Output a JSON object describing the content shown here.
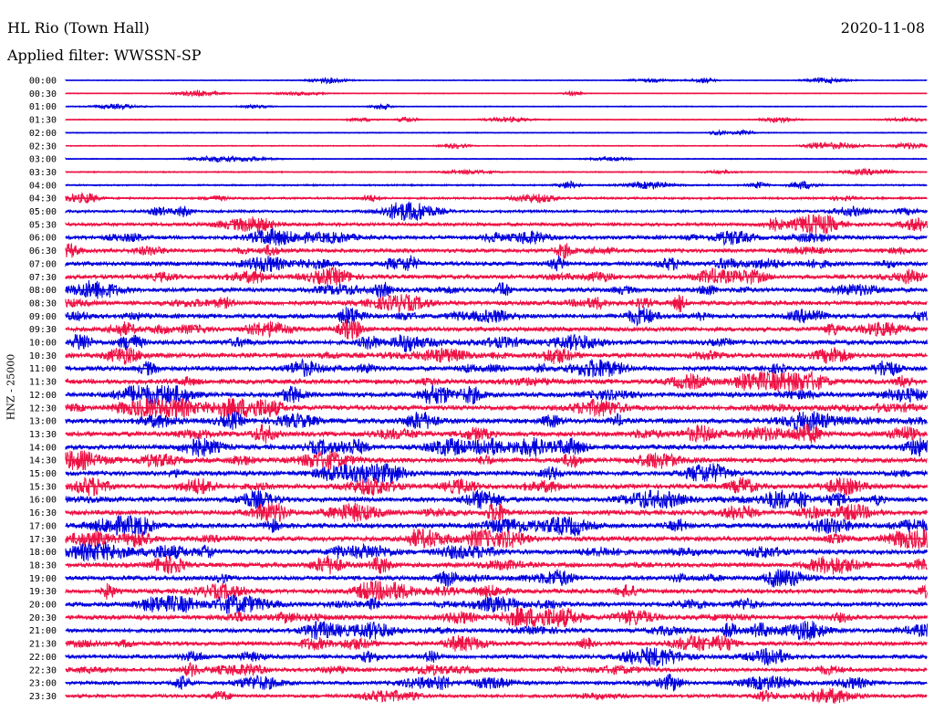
{
  "header": {
    "title": "HL Rio (Town Hall)",
    "date": "2020-11-08",
    "filter": "Applied filter: WWSSN-SP"
  },
  "chart_data": {
    "type": "line",
    "title": "HL Rio (Town Hall)",
    "subtitle": "Applied filter: WWSSN-SP",
    "ylabel": "HNZ - 25000",
    "xlabel": "",
    "colors": [
      "#0000dd",
      "#ee1144"
    ],
    "rows": [
      "00:00",
      "00:30",
      "01:00",
      "01:30",
      "02:00",
      "02:30",
      "03:00",
      "03:30",
      "04:00",
      "04:30",
      "05:00",
      "05:30",
      "06:00",
      "06:30",
      "07:00",
      "07:30",
      "08:00",
      "08:30",
      "09:00",
      "09:30",
      "10:00",
      "10:30",
      "11:00",
      "11:30",
      "12:00",
      "12:30",
      "13:00",
      "13:30",
      "14:00",
      "14:30",
      "15:00",
      "15:30",
      "16:00",
      "16:30",
      "17:00",
      "17:30",
      "18:00",
      "18:30",
      "19:00",
      "19:30",
      "20:00",
      "20:30",
      "21:00",
      "21:30",
      "22:00",
      "22:30",
      "23:00",
      "23:30"
    ],
    "noise_level": [
      0.8,
      0.8,
      0.9,
      0.9,
      0.9,
      1.0,
      1.0,
      1.2,
      1.5,
      2.0,
      2.4,
      3.2,
      3.5,
      3.5,
      3.8,
      3.8,
      4.0,
      4.0,
      4.0,
      4.0,
      4.2,
      4.2,
      4.2,
      4.4,
      4.4,
      4.4,
      4.4,
      4.4,
      4.4,
      4.4,
      4.2,
      4.2,
      4.4,
      4.4,
      4.4,
      4.4,
      4.2,
      4.2,
      4.0,
      4.0,
      4.0,
      4.0,
      3.8,
      3.8,
      3.6,
      3.4,
      3.2,
      3.0
    ]
  }
}
